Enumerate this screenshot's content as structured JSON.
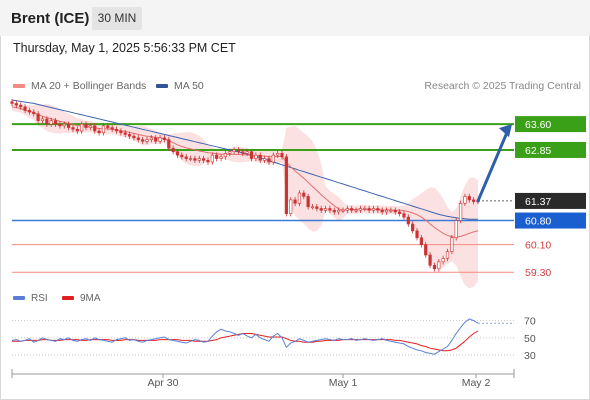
{
  "header": {
    "instrument": "Brent (ICE)",
    "timeframe": "30 MIN"
  },
  "timestamp": "Thursday, May 1, 2025 5:56:33 PM CET",
  "legend": {
    "ma20": {
      "label": "MA 20 + Bollinger Bands",
      "color": "#f28b82"
    },
    "ma50": {
      "label": "MA 50",
      "color": "#2f5597"
    },
    "credit": "Research © 2025 Trading Central"
  },
  "rsi_legend": {
    "rsi": {
      "label": "RSI",
      "color": "#5b7fd6"
    },
    "ma9": {
      "label": "9MA",
      "color": "#e02020"
    }
  },
  "colors": {
    "support": "#3a7bd5",
    "resistance": "#3aa018",
    "pivot": "#333333",
    "minor": "#f28b82",
    "arrow": "#2f5fa8",
    "candle": "#cc3333"
  },
  "chart_data": [
    {
      "type": "candlestick",
      "ylim": [
        58.9,
        64.3
      ],
      "x_ticks": [
        "Apr 30",
        "May 1",
        "May 2"
      ],
      "levels": [
        {
          "value": 63.6,
          "label": "63.60",
          "kind": "resistance"
        },
        {
          "value": 62.85,
          "label": "62.85",
          "kind": "resistance"
        },
        {
          "value": 61.37,
          "label": "61.37",
          "kind": "pivot"
        },
        {
          "value": 60.8,
          "label": "60.80",
          "kind": "support"
        },
        {
          "value": 60.1,
          "label": "60.10",
          "kind": "minor"
        },
        {
          "value": 59.3,
          "label": "59.30",
          "kind": "minor"
        }
      ],
      "close": [
        64.2,
        64.15,
        64.1,
        64.0,
        63.95,
        63.9,
        63.7,
        63.75,
        63.6,
        63.7,
        63.6,
        63.55,
        63.6,
        63.5,
        63.45,
        63.4,
        63.6,
        63.5,
        63.55,
        63.4,
        63.35,
        63.55,
        63.5,
        63.45,
        63.4,
        63.35,
        63.3,
        63.25,
        63.2,
        63.15,
        63.1,
        63.15,
        63.2,
        63.1,
        63.2,
        63.15,
        62.9,
        62.8,
        62.7,
        62.65,
        62.6,
        62.6,
        62.55,
        62.6,
        62.55,
        62.5,
        62.7,
        62.6,
        62.65,
        62.75,
        62.8,
        62.85,
        62.8,
        62.75,
        62.8,
        62.6,
        62.7,
        62.55,
        62.6,
        62.5,
        62.7,
        62.75,
        62.65,
        61.0,
        61.4,
        61.3,
        61.6,
        61.5,
        61.2,
        61.2,
        61.15,
        61.1,
        61.15,
        61.1,
        61.05,
        61.1,
        61.1,
        61.15,
        61.1,
        61.1,
        61.15,
        61.15,
        61.1,
        61.15,
        61.1,
        61.05,
        61.1,
        61.1,
        61.05,
        61.0,
        60.9,
        60.7,
        60.5,
        60.3,
        60.1,
        59.8,
        59.5,
        59.4,
        59.6,
        59.7,
        59.9,
        60.3,
        60.8,
        61.3,
        61.5,
        61.4,
        61.35,
        61.37
      ],
      "ma20": [
        64.1,
        64.08,
        64.05,
        64.0,
        63.97,
        63.93,
        63.87,
        63.83,
        63.79,
        63.76,
        63.72,
        63.68,
        63.65,
        63.62,
        63.59,
        63.55,
        63.55,
        63.53,
        63.52,
        63.5,
        63.47,
        63.47,
        63.46,
        63.45,
        63.43,
        63.41,
        63.39,
        63.36,
        63.33,
        63.3,
        63.27,
        63.25,
        63.24,
        63.21,
        63.2,
        63.17,
        63.12,
        63.06,
        63.0,
        62.95,
        62.91,
        62.88,
        62.85,
        62.82,
        62.8,
        62.77,
        62.76,
        62.74,
        62.73,
        62.72,
        62.72,
        62.72,
        62.72,
        62.71,
        62.71,
        62.69,
        62.69,
        62.68,
        62.67,
        62.65,
        62.66,
        62.66,
        62.66,
        62.49,
        62.36,
        62.24,
        62.14,
        62.03,
        61.91,
        61.79,
        61.67,
        61.55,
        61.44,
        61.33,
        61.23,
        61.14,
        61.1,
        61.12,
        61.12,
        61.12,
        61.13,
        61.13,
        61.12,
        61.12,
        61.12,
        61.11,
        61.11,
        61.11,
        61.1,
        61.1,
        61.09,
        61.06,
        61.02,
        60.97,
        60.9,
        60.81,
        60.7,
        60.6,
        60.51,
        60.43,
        60.37,
        60.33,
        60.32,
        60.34,
        60.38,
        60.43,
        60.47,
        60.5
      ],
      "ma50": [
        64.3,
        64.28,
        64.26,
        64.24,
        64.22,
        64.2,
        64.17,
        64.14,
        64.11,
        64.08,
        64.05,
        64.02,
        63.99,
        63.96,
        63.93,
        63.9,
        63.87,
        63.84,
        63.81,
        63.78,
        63.75,
        63.72,
        63.69,
        63.66,
        63.63,
        63.6,
        63.57,
        63.54,
        63.51,
        63.48,
        63.45,
        63.42,
        63.39,
        63.36,
        63.33,
        63.3,
        63.27,
        63.24,
        63.21,
        63.18,
        63.15,
        63.12,
        63.09,
        63.06,
        63.03,
        63.0,
        62.97,
        62.94,
        62.91,
        62.88,
        62.85,
        62.82,
        62.79,
        62.76,
        62.73,
        62.7,
        62.66,
        62.62,
        62.58,
        62.54,
        62.5,
        62.46,
        62.42,
        62.38,
        62.34,
        62.3,
        62.26,
        62.22,
        62.18,
        62.14,
        62.1,
        62.06,
        62.02,
        61.98,
        61.94,
        61.9,
        61.86,
        61.82,
        61.78,
        61.74,
        61.7,
        61.66,
        61.62,
        61.58,
        61.54,
        61.5,
        61.46,
        61.42,
        61.38,
        61.34,
        61.3,
        61.26,
        61.22,
        61.18,
        61.14,
        61.1,
        61.06,
        61.02,
        60.98,
        60.95,
        60.92,
        60.9,
        60.88,
        60.86,
        60.85,
        60.84,
        60.84,
        60.84
      ],
      "forecast_target": 63.6
    },
    {
      "type": "line",
      "ylim": [
        15,
        80
      ],
      "y_ticks": [
        70,
        50,
        30
      ],
      "rsi": [
        47,
        48,
        46,
        47,
        49,
        45,
        47,
        50,
        48,
        47,
        46,
        49,
        48,
        50,
        47,
        46,
        48,
        49,
        47,
        50,
        48,
        47,
        46,
        45,
        48,
        49,
        50,
        47,
        48,
        46,
        45,
        47,
        48,
        49,
        50,
        51,
        48,
        47,
        46,
        45,
        44,
        46,
        48,
        47,
        45,
        46,
        52,
        57,
        60,
        58,
        57,
        55,
        53,
        55,
        52,
        50,
        54,
        50,
        48,
        46,
        52,
        55,
        50,
        39,
        44,
        46,
        49,
        47,
        45,
        46,
        47,
        48,
        49,
        48,
        47,
        49,
        48,
        48,
        49,
        47,
        48,
        49,
        48,
        47,
        48,
        49,
        47,
        46,
        45,
        44,
        43,
        40,
        38,
        36,
        35,
        33,
        32,
        31,
        34,
        37,
        40,
        47,
        55,
        62,
        68,
        72,
        70,
        67
      ],
      "ma9": [
        46,
        46,
        46,
        47,
        47,
        47,
        47,
        48,
        48,
        47,
        47,
        47,
        48,
        48,
        48,
        48,
        47,
        47,
        48,
        48,
        48,
        48,
        48,
        47,
        47,
        47,
        48,
        48,
        48,
        47,
        47,
        47,
        47,
        47,
        48,
        48,
        48,
        48,
        48,
        47,
        47,
        47,
        46,
        46,
        46,
        46,
        47,
        48,
        50,
        51,
        52,
        53,
        54,
        55,
        55,
        55,
        54,
        53,
        52,
        51,
        51,
        51,
        51,
        49,
        47,
        46,
        46,
        45,
        45,
        45,
        46,
        46,
        47,
        47,
        47,
        47,
        48,
        48,
        48,
        48,
        48,
        48,
        48,
        48,
        48,
        48,
        48,
        48,
        47,
        47,
        46,
        45,
        44,
        43,
        41,
        40,
        38,
        37,
        36,
        35,
        35,
        36,
        38,
        42,
        46,
        51,
        55,
        58
      ]
    }
  ]
}
